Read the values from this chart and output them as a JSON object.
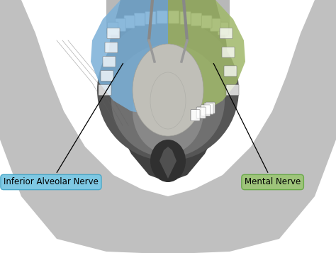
{
  "fig_width": 4.74,
  "fig_height": 3.57,
  "dpi": 100,
  "background_color": "#ffffff",
  "label_left": "Inferior Alveolar Nerve",
  "label_right": "Mental Nerve",
  "label_left_color": "#7ec8e3",
  "label_right_color": "#9ec47a",
  "label_left_edge_color": "#4aa8c8",
  "label_right_edge_color": "#6aaa4a",
  "font_size": 8.5,
  "blue_region_color": "#7ab0d8",
  "green_region_color": "#a0b86a",
  "blue_region_alpha": 0.85,
  "green_region_alpha": 0.85,
  "outer_shape_color": "#c8c8c8",
  "outer_bg_color": "#e8e8e8",
  "palate_dark": "#404040",
  "palate_mid": "#707070",
  "palate_light": "#909090",
  "tongue_color": "#c0bfb8",
  "teeth_color": "#f0f0f0",
  "teeth_edge": "#888888",
  "line_color": "#1a1a1a"
}
